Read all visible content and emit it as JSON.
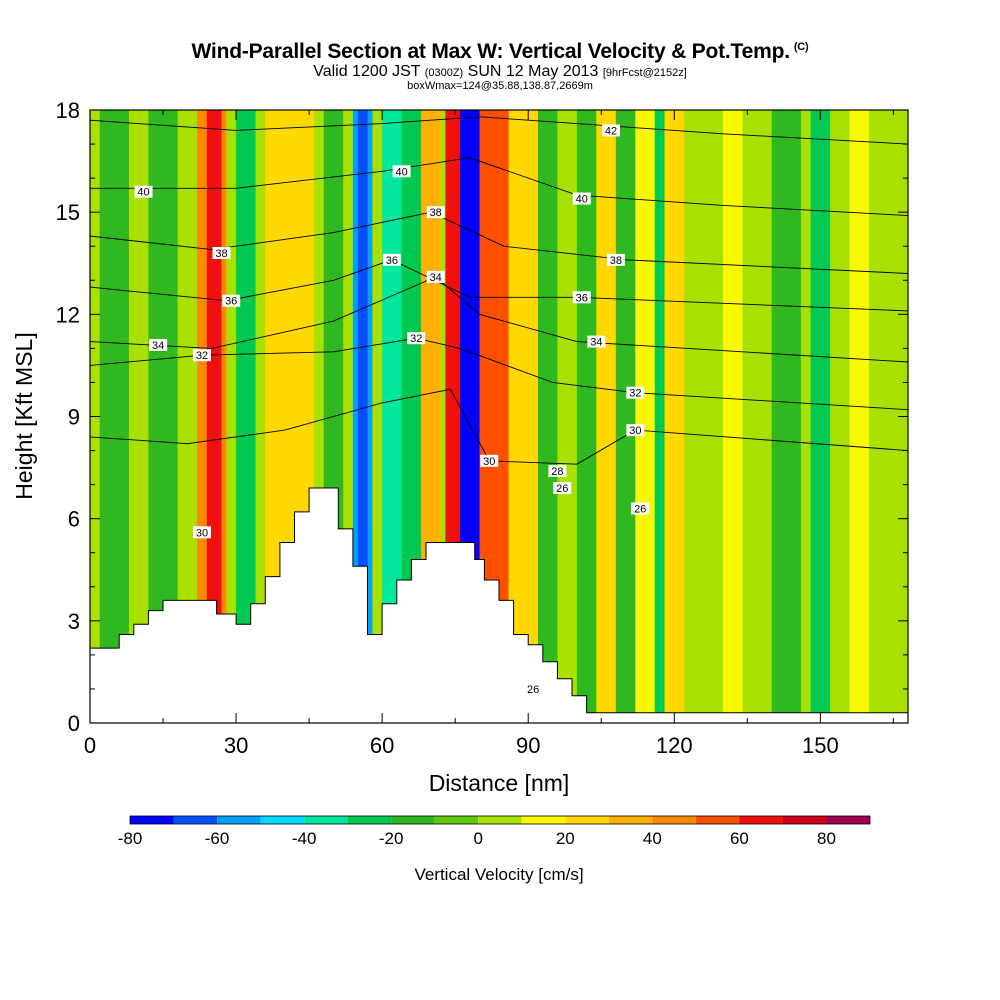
{
  "header": {
    "title": "Wind-Parallel Section at Max W: Vertical Velocity & Pot.Temp.",
    "title_mark": "(C)",
    "valid_prefix": "Valid 1200 JST",
    "valid_zulu": "(0300Z)",
    "valid_date": "SUN 12 May 2013",
    "forecast_info": "[9hrFcst@2152z]",
    "box_info": "boxWmax=124@35.88,138.87,2669m"
  },
  "chart_data": {
    "type": "heatmap",
    "xlabel": "Distance [nm]",
    "ylabel": "Height [Kft MSL]",
    "xlim": [
      0,
      168
    ],
    "ylim": [
      0,
      18
    ],
    "x_ticks": [
      "0",
      "30",
      "60",
      "90",
      "120",
      "150"
    ],
    "y_ticks": [
      "0",
      "3",
      "6",
      "9",
      "12",
      "15",
      "18"
    ],
    "colorbar": {
      "title": "Vertical Velocity [cm/s]",
      "tick_labels": [
        "-80",
        "-60",
        "-40",
        "-20",
        "0",
        "20",
        "40",
        "60",
        "80"
      ],
      "bins": [
        -80,
        -70,
        -60,
        -50,
        -40,
        -30,
        -20,
        -10,
        0,
        10,
        20,
        30,
        40,
        50,
        60,
        70,
        80,
        90
      ],
      "colors": [
        "#0000ff",
        "#0050ff",
        "#00a0ff",
        "#00d8ff",
        "#00e8a0",
        "#00c850",
        "#30b820",
        "#60c810",
        "#a8e000",
        "#f8f800",
        "#ffd800",
        "#ffb000",
        "#ff8800",
        "#ff5000",
        "#f01010",
        "#d00020",
        "#a00050",
        "#5a0090"
      ]
    },
    "terrain_profile": [
      [
        0,
        2.2
      ],
      [
        6,
        2.2
      ],
      [
        6,
        2.6
      ],
      [
        9,
        2.6
      ],
      [
        9,
        2.9
      ],
      [
        12,
        2.9
      ],
      [
        12,
        3.3
      ],
      [
        15,
        3.3
      ],
      [
        15,
        3.6
      ],
      [
        26,
        3.6
      ],
      [
        26,
        3.2
      ],
      [
        30,
        3.2
      ],
      [
        30,
        2.9
      ],
      [
        33,
        2.9
      ],
      [
        33,
        3.5
      ],
      [
        36,
        3.5
      ],
      [
        36,
        4.3
      ],
      [
        39,
        4.3
      ],
      [
        39,
        5.3
      ],
      [
        42,
        5.3
      ],
      [
        42,
        6.2
      ],
      [
        45,
        6.2
      ],
      [
        45,
        6.9
      ],
      [
        51,
        6.9
      ],
      [
        51,
        5.7
      ],
      [
        54,
        5.7
      ],
      [
        54,
        4.6
      ],
      [
        57,
        4.6
      ],
      [
        57,
        2.6
      ],
      [
        60,
        2.6
      ],
      [
        60,
        3.5
      ],
      [
        63,
        3.5
      ],
      [
        63,
        4.2
      ],
      [
        66,
        4.2
      ],
      [
        66,
        4.8
      ],
      [
        69,
        4.8
      ],
      [
        69,
        5.3
      ],
      [
        79,
        5.3
      ],
      [
        79,
        4.8
      ],
      [
        81,
        4.8
      ],
      [
        81,
        4.2
      ],
      [
        84,
        4.2
      ],
      [
        84,
        3.6
      ],
      [
        87,
        3.6
      ],
      [
        87,
        2.6
      ],
      [
        90,
        2.6
      ],
      [
        90,
        2.3
      ],
      [
        93,
        2.3
      ],
      [
        93,
        1.8
      ],
      [
        96,
        1.8
      ],
      [
        96,
        1.3
      ],
      [
        99,
        1.3
      ],
      [
        99,
        0.8
      ],
      [
        102,
        0.8
      ],
      [
        102,
        0.3
      ],
      [
        168,
        0.3
      ]
    ],
    "bands": [
      {
        "x": [
          0,
          168
        ],
        "w": 0
      },
      {
        "x": [
          2,
          8
        ],
        "w": -15
      },
      {
        "x": [
          12,
          18
        ],
        "w": -15
      },
      {
        "x": [
          22,
          28
        ],
        "w": 45
      },
      {
        "x": [
          24,
          27
        ],
        "w": 62
      },
      {
        "x": [
          30,
          34
        ],
        "w": -30
      },
      {
        "x": [
          36,
          46
        ],
        "w": 25
      },
      {
        "x": [
          48,
          52
        ],
        "w": -20
      },
      {
        "x": [
          54,
          58
        ],
        "w": -55
      },
      {
        "x": [
          55,
          57
        ],
        "w": -65
      },
      {
        "x": [
          60,
          64
        ],
        "w": -35
      },
      {
        "x": [
          64,
          68
        ],
        "w": -25
      },
      {
        "x": [
          68,
          72
        ],
        "w": 30
      },
      {
        "x": [
          73,
          80
        ],
        "w": 62
      },
      {
        "x": [
          76,
          81
        ],
        "w": 84
      },
      {
        "x": [
          80,
          86
        ],
        "w": 50
      },
      {
        "x": [
          76,
          80
        ],
        "w": -75
      },
      {
        "x": [
          86,
          92
        ],
        "w": 20
      },
      {
        "x": [
          92,
          96
        ],
        "w": -20
      },
      {
        "x": [
          100,
          104
        ],
        "w": -20
      },
      {
        "x": [
          104,
          108
        ],
        "w": 20
      },
      {
        "x": [
          108,
          112
        ],
        "w": -20
      },
      {
        "x": [
          112,
          116
        ],
        "w": 15
      },
      {
        "x": [
          116,
          118
        ],
        "w": -25
      },
      {
        "x": [
          118,
          122
        ],
        "w": 20
      },
      {
        "x": [
          130,
          134
        ],
        "w": 10
      },
      {
        "x": [
          140,
          146
        ],
        "w": -20
      },
      {
        "x": [
          148,
          152
        ],
        "w": -25
      },
      {
        "x": [
          156,
          160
        ],
        "w": 15
      }
    ],
    "contour_labels": [
      {
        "text": "42",
        "x": 107,
        "y": 17.4
      },
      {
        "text": "40",
        "x": 11,
        "y": 15.6
      },
      {
        "text": "40",
        "x": 64,
        "y": 16.2
      },
      {
        "text": "40",
        "x": 101,
        "y": 15.4
      },
      {
        "text": "38",
        "x": 71,
        "y": 15.0
      },
      {
        "text": "38",
        "x": 27,
        "y": 13.8
      },
      {
        "text": "38",
        "x": 108,
        "y": 13.6
      },
      {
        "text": "36",
        "x": 62,
        "y": 13.6
      },
      {
        "text": "36",
        "x": 29,
        "y": 12.4
      },
      {
        "text": "36",
        "x": 101,
        "y": 12.5
      },
      {
        "text": "34",
        "x": 71,
        "y": 13.1
      },
      {
        "text": "34",
        "x": 14,
        "y": 11.1
      },
      {
        "text": "34",
        "x": 104,
        "y": 11.2
      },
      {
        "text": "32",
        "x": 23,
        "y": 10.8
      },
      {
        "text": "32",
        "x": 67,
        "y": 11.3
      },
      {
        "text": "32",
        "x": 112,
        "y": 9.7
      },
      {
        "text": "30",
        "x": 112,
        "y": 8.6
      },
      {
        "text": "30",
        "x": 82,
        "y": 7.7
      },
      {
        "text": "30",
        "x": 23,
        "y": 5.6
      },
      {
        "text": "28",
        "x": 96,
        "y": 7.4
      },
      {
        "text": "26",
        "x": 97,
        "y": 6.9
      },
      {
        "text": "26",
        "x": 113,
        "y": 6.3
      },
      {
        "text": "26",
        "x": 91,
        "y": 1.0
      }
    ],
    "isentropes": [
      {
        "theta": 42,
        "pts": [
          [
            0,
            17.7
          ],
          [
            30,
            17.4
          ],
          [
            60,
            17.6
          ],
          [
            80,
            17.8
          ],
          [
            100,
            17.6
          ],
          [
            130,
            17.3
          ],
          [
            168,
            17.0
          ]
        ]
      },
      {
        "theta": 40,
        "pts": [
          [
            0,
            15.7
          ],
          [
            30,
            15.7
          ],
          [
            60,
            16.2
          ],
          [
            78,
            16.6
          ],
          [
            100,
            15.5
          ],
          [
            130,
            15.2
          ],
          [
            168,
            14.9
          ]
        ]
      },
      {
        "theta": 38,
        "pts": [
          [
            0,
            14.3
          ],
          [
            25,
            13.9
          ],
          [
            50,
            14.4
          ],
          [
            70,
            15.0
          ],
          [
            85,
            14.0
          ],
          [
            110,
            13.6
          ],
          [
            168,
            13.2
          ]
        ]
      },
      {
        "theta": 36,
        "pts": [
          [
            0,
            12.8
          ],
          [
            28,
            12.4
          ],
          [
            50,
            13.0
          ],
          [
            62,
            13.6
          ],
          [
            78,
            12.5
          ],
          [
            100,
            12.5
          ],
          [
            168,
            12.1
          ]
        ]
      },
      {
        "theta": 34,
        "pts": [
          [
            0,
            11.2
          ],
          [
            25,
            11.0
          ],
          [
            50,
            11.8
          ],
          [
            71,
            13.1
          ],
          [
            80,
            12.0
          ],
          [
            100,
            11.2
          ],
          [
            168,
            10.6
          ]
        ]
      },
      {
        "theta": 32,
        "pts": [
          [
            0,
            10.5
          ],
          [
            23,
            10.8
          ],
          [
            50,
            10.9
          ],
          [
            67,
            11.3
          ],
          [
            76,
            11.0
          ],
          [
            95,
            10.0
          ],
          [
            112,
            9.7
          ],
          [
            168,
            9.2
          ]
        ]
      },
      {
        "theta": 30,
        "pts": [
          [
            0,
            8.4
          ],
          [
            20,
            8.2
          ],
          [
            40,
            8.6
          ],
          [
            60,
            9.4
          ],
          [
            74,
            9.8
          ],
          [
            82,
            7.7
          ],
          [
            100,
            7.6
          ],
          [
            112,
            8.6
          ],
          [
            168,
            8.0
          ]
        ]
      }
    ]
  }
}
